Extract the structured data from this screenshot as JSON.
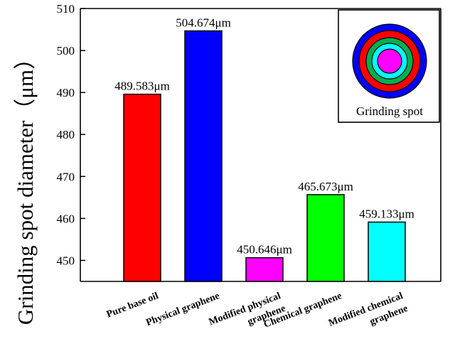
{
  "chart_data": {
    "type": "bar",
    "title": "",
    "xlabel": "",
    "ylabel": "Grinding spot diameter（μm）",
    "ylim": [
      445,
      510
    ],
    "yticks": [
      450,
      460,
      470,
      480,
      490,
      500,
      510
    ],
    "grid": false,
    "categories": [
      [
        "Pure base oil"
      ],
      [
        "Physical graphene"
      ],
      [
        "Modified physical",
        "graphene"
      ],
      [
        "Chemical graphene"
      ],
      [
        "Modified chemical",
        "graphene"
      ]
    ],
    "values": [
      489.583,
      504.674,
      450.646,
      465.673,
      459.133
    ],
    "value_labels": [
      "489.583μm",
      "504.674μm",
      "450.646μm",
      "465.673μm",
      "459.133μm"
    ],
    "colors": [
      "#ff0000",
      "#0000ff",
      "#ff00ff",
      "#00ff00",
      "#00ffff"
    ],
    "inset": {
      "label": "Grinding spot",
      "ring_colors": [
        "#0000ff",
        "#ff0000",
        "#00b050",
        "#00ffff",
        "#ff00ff"
      ]
    }
  }
}
